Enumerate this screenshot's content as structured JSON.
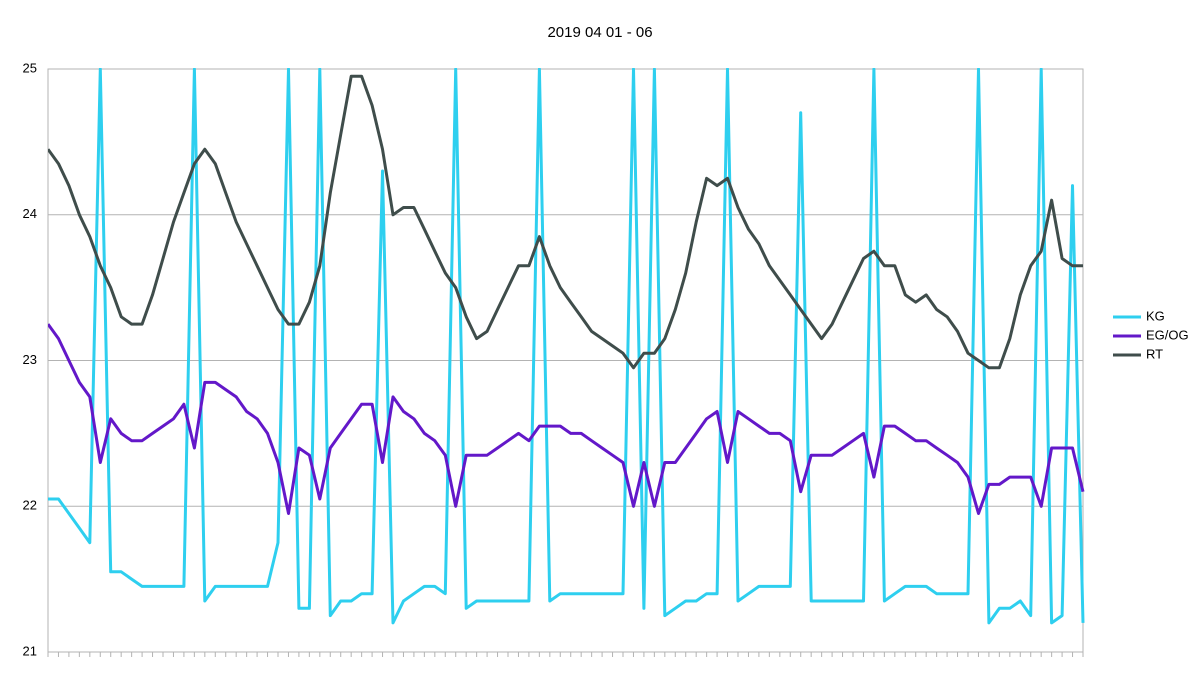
{
  "chart_data": {
    "type": "line",
    "title": "2019 04 01 - 06",
    "categories": [
      null,
      null,
      null,
      null,
      null,
      null,
      null,
      null,
      null,
      null,
      null,
      null,
      null,
      null,
      null,
      null,
      null,
      null,
      null,
      null,
      null,
      null,
      null,
      null,
      null,
      null,
      null,
      null,
      null,
      null,
      null,
      null,
      null,
      null,
      null,
      null,
      null,
      null,
      null,
      null,
      null,
      null,
      null,
      null,
      null,
      null,
      null,
      null,
      null,
      null,
      null,
      null,
      null,
      null,
      null,
      null,
      null,
      null,
      null,
      null,
      null,
      null,
      null,
      null,
      null,
      null,
      null,
      null,
      null,
      null,
      null,
      null,
      null,
      null,
      null,
      null,
      null,
      null,
      null,
      null,
      null,
      null,
      null,
      null,
      null,
      null,
      null,
      null,
      null,
      null,
      null,
      null,
      null,
      null,
      null,
      null,
      null,
      null,
      null,
      null
    ],
    "series": [
      {
        "name": "KG",
        "color": "#2ecfef",
        "values": [
          22.05,
          22.05,
          21.95,
          21.85,
          21.75,
          25,
          21.55,
          21.55,
          21.5,
          21.45,
          21.45,
          21.45,
          21.45,
          21.45,
          25,
          21.35,
          21.45,
          21.45,
          21.45,
          21.45,
          21.45,
          21.45,
          21.75,
          25,
          21.3,
          21.3,
          25,
          21.25,
          21.35,
          21.35,
          21.4,
          21.4,
          24.3,
          21.2,
          21.35,
          21.4,
          21.45,
          21.45,
          21.4,
          25,
          21.3,
          21.35,
          21.35,
          21.35,
          21.35,
          21.35,
          21.35,
          25,
          21.35,
          21.4,
          21.4,
          21.4,
          21.4,
          21.4,
          21.4,
          21.4,
          25,
          21.3,
          25,
          21.25,
          21.3,
          21.35,
          21.35,
          21.4,
          21.4,
          25,
          21.35,
          21.4,
          21.45,
          21.45,
          21.45,
          21.45,
          24.7,
          21.35,
          21.35,
          21.35,
          21.35,
          21.35,
          21.35,
          25,
          21.35,
          21.4,
          21.45,
          21.45,
          21.45,
          21.4,
          21.4,
          21.4,
          21.4,
          25,
          21.2,
          21.3,
          21.3,
          21.35,
          21.25,
          25,
          21.2,
          21.25,
          24.2,
          21.2
        ]
      },
      {
        "name": "EG/OG",
        "color": "#6318c9",
        "values": [
          23.25,
          23.15,
          23.0,
          22.85,
          22.75,
          22.3,
          22.6,
          22.5,
          22.45,
          22.45,
          22.5,
          22.55,
          22.6,
          22.7,
          22.4,
          22.85,
          22.85,
          22.8,
          22.75,
          22.65,
          22.6,
          22.5,
          22.3,
          21.95,
          22.4,
          22.35,
          22.05,
          22.4,
          22.5,
          22.6,
          22.7,
          22.7,
          22.3,
          22.75,
          22.65,
          22.6,
          22.5,
          22.45,
          22.35,
          22.0,
          22.35,
          22.35,
          22.35,
          22.4,
          22.45,
          22.5,
          22.45,
          22.55,
          22.55,
          22.55,
          22.5,
          22.5,
          22.45,
          22.4,
          22.35,
          22.3,
          22.0,
          22.3,
          22.0,
          22.3,
          22.3,
          22.4,
          22.5,
          22.6,
          22.65,
          22.3,
          22.65,
          22.6,
          22.55,
          22.5,
          22.5,
          22.45,
          22.1,
          22.35,
          22.35,
          22.35,
          22.4,
          22.45,
          22.5,
          22.2,
          22.55,
          22.55,
          22.5,
          22.45,
          22.45,
          22.4,
          22.35,
          22.3,
          22.2,
          21.95,
          22.15,
          22.15,
          22.2,
          22.2,
          22.2,
          22.0,
          22.4,
          22.4,
          22.4,
          22.1
        ]
      },
      {
        "name": "RT",
        "color": "#3f4d4b",
        "values": [
          24.45,
          24.35,
          24.2,
          24.0,
          23.85,
          23.65,
          23.5,
          23.3,
          23.25,
          23.25,
          23.45,
          23.7,
          23.95,
          24.15,
          24.35,
          24.45,
          24.35,
          24.15,
          23.95,
          23.8,
          23.65,
          23.5,
          23.35,
          23.25,
          23.25,
          23.4,
          23.65,
          24.15,
          24.55,
          24.95,
          24.95,
          24.75,
          24.45,
          24.0,
          24.05,
          24.05,
          23.9,
          23.75,
          23.6,
          23.5,
          23.3,
          23.15,
          23.2,
          23.35,
          23.5,
          23.65,
          23.65,
          23.85,
          23.65,
          23.5,
          23.4,
          23.3,
          23.2,
          23.15,
          23.1,
          23.05,
          22.95,
          23.05,
          23.05,
          23.15,
          23.35,
          23.6,
          23.95,
          24.25,
          24.2,
          24.25,
          24.05,
          23.9,
          23.8,
          23.65,
          23.55,
          23.45,
          23.35,
          23.25,
          23.15,
          23.25,
          23.4,
          23.55,
          23.7,
          23.75,
          23.65,
          23.65,
          23.45,
          23.4,
          23.45,
          23.35,
          23.3,
          23.2,
          23.05,
          23.0,
          22.95,
          22.95,
          23.15,
          23.45,
          23.65,
          23.75,
          24.1,
          23.7,
          23.65,
          23.65
        ]
      }
    ],
    "ylim": [
      21,
      25
    ],
    "yticks": [
      21,
      22,
      23,
      24,
      25
    ],
    "grid": true,
    "legend": "right"
  }
}
